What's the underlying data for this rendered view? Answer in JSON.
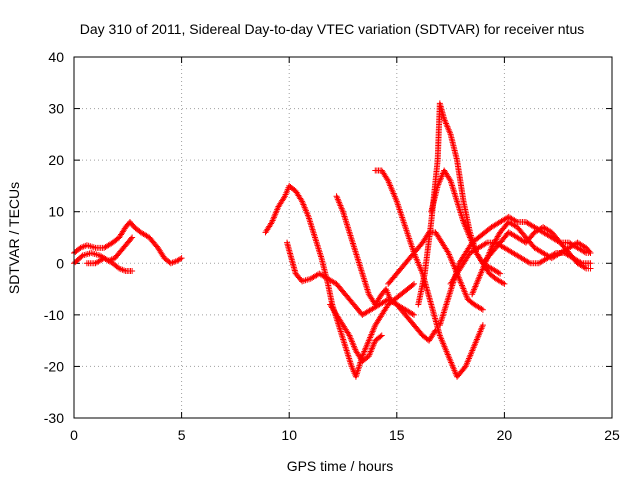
{
  "chart_data": {
    "type": "scatter",
    "title": "Day 310 of 2011, Sidereal Day-to-day VTEC variation (SDTVAR) for receiver ntus",
    "xlabel": "GPS time / hours",
    "ylabel": "SDTVAR / TECUs",
    "xlim": [
      0,
      25
    ],
    "ylim": [
      -30,
      40
    ],
    "xticks": [
      0,
      5,
      10,
      15,
      20,
      25
    ],
    "yticks": [
      -30,
      -20,
      -10,
      0,
      10,
      20,
      30,
      40
    ],
    "grid": true,
    "marker": "+",
    "color": "#ff0000",
    "series": [
      {
        "x": [
          0.0,
          0.3,
          0.6,
          1.0,
          1.4,
          1.8,
          2.1,
          2.4,
          2.6,
          2.8,
          3.1,
          3.5,
          3.9,
          4.2,
          4.5,
          4.8,
          5.0
        ],
        "y": [
          2,
          3,
          3.5,
          3,
          3,
          4,
          5,
          7,
          8,
          7,
          6,
          5,
          3,
          1,
          0,
          0.5,
          1
        ]
      },
      {
        "x": [
          0.0,
          0.4,
          0.8,
          1.2,
          1.6,
          1.9,
          2.2,
          2.5,
          2.7
        ],
        "y": [
          0,
          1.5,
          2,
          1.5,
          0.5,
          1,
          2.5,
          4,
          5
        ]
      },
      {
        "x": [
          0.6,
          1.0,
          1.4,
          1.8,
          2.1,
          2.4,
          2.7
        ],
        "y": [
          0,
          0,
          1,
          0,
          -1,
          -1.5,
          -1.5
        ]
      },
      {
        "x": [
          8.9,
          9.2,
          9.5,
          9.8,
          10.0,
          10.3,
          10.6,
          10.9,
          11.2,
          11.5,
          11.8,
          12.0,
          12.3,
          12.6,
          12.9,
          13.1,
          13.4,
          13.7,
          14.0,
          14.3,
          14.6,
          14.9,
          15.2,
          15.5,
          15.8
        ],
        "y": [
          6,
          8,
          11,
          13,
          15,
          14,
          12,
          9,
          5,
          1,
          -4,
          -8,
          -12,
          -16,
          -20,
          -22,
          -18,
          -15,
          -12,
          -10,
          -8,
          -7,
          -6,
          -5,
          -4
        ]
      },
      {
        "x": [
          9.9,
          10.1,
          10.3,
          10.6,
          11.0,
          11.4,
          11.8,
          12.2,
          12.6,
          13.0,
          13.4,
          13.8,
          14.2,
          14.6,
          15.0,
          15.4,
          15.8
        ],
        "y": [
          4,
          1,
          -2,
          -3.5,
          -3,
          -2,
          -3,
          -4,
          -6,
          -8,
          -10,
          -9,
          -8,
          -7,
          -8,
          -9,
          -10
        ]
      },
      {
        "x": [
          11.9,
          12.2,
          12.5,
          12.8,
          13.1,
          13.4,
          13.7,
          14.0,
          14.3
        ],
        "y": [
          -8,
          -10,
          -12,
          -14,
          -17,
          -19,
          -18,
          -15,
          -14
        ]
      },
      {
        "x": [
          12.2,
          12.5,
          12.8,
          13.1,
          13.4,
          13.7,
          14.0,
          14.3,
          14.5,
          14.7,
          15.0,
          15.4,
          15.8,
          16.2,
          16.5,
          16.8
        ],
        "y": [
          13,
          10,
          6,
          2,
          -2,
          -6,
          -8,
          -6,
          -5,
          -7,
          -8,
          -10,
          -12,
          -14,
          -15,
          -13
        ]
      },
      {
        "x": [
          14.0,
          14.3,
          14.6,
          15.0,
          15.4,
          15.8,
          16.2,
          16.6,
          17.0,
          17.4,
          17.8,
          18.2,
          18.6,
          19.0
        ],
        "y": [
          18,
          18,
          16,
          12,
          7,
          2,
          -2,
          -8,
          -14,
          -18,
          -22,
          -20,
          -16,
          -12
        ]
      },
      {
        "x": [
          14.6,
          15.0,
          15.4,
          15.8,
          16.2,
          16.5,
          16.8,
          17.1,
          17.4,
          17.7,
          18.0,
          18.3,
          18.6,
          19.0
        ],
        "y": [
          -4,
          -2,
          0,
          2,
          4,
          6,
          6,
          4,
          2,
          -1,
          -4,
          -7,
          -8,
          -9
        ]
      },
      {
        "x": [
          16.0,
          16.3,
          16.6,
          16.9,
          17.0,
          17.2,
          17.5,
          17.8,
          18.1,
          18.4,
          18.7,
          19.0,
          19.4,
          19.8
        ],
        "y": [
          -8,
          -2,
          8,
          20,
          31,
          28,
          25,
          20,
          12,
          6,
          2,
          0,
          -1,
          -2
        ]
      },
      {
        "x": [
          16.6,
          16.9,
          17.2,
          17.5,
          17.8,
          18.1,
          18.4,
          18.7,
          19.0,
          19.3,
          19.6,
          20.0
        ],
        "y": [
          10,
          15,
          18,
          16,
          12,
          8,
          5,
          2,
          0,
          -2,
          -3,
          -4
        ]
      },
      {
        "x": [
          17.0,
          17.3,
          17.6,
          17.9,
          18.2,
          18.5,
          18.8,
          19.1,
          19.4,
          19.8,
          20.2,
          20.6,
          21.0,
          21.4,
          21.8,
          22.2,
          22.6,
          23.0,
          23.4,
          23.8,
          24.0
        ],
        "y": [
          -12,
          -8,
          -4,
          0,
          2,
          4,
          5,
          6,
          7,
          8,
          9,
          8,
          8,
          7,
          6,
          5,
          4,
          4,
          3,
          2,
          2
        ]
      },
      {
        "x": [
          17.5,
          17.8,
          18.1,
          18.4,
          18.8,
          19.2,
          19.6,
          20.0,
          20.4,
          20.8,
          21.2,
          21.6,
          22.0,
          22.4,
          22.8,
          23.2,
          23.6,
          24.0
        ],
        "y": [
          -4,
          -2,
          0,
          2,
          3,
          4,
          4,
          3,
          2,
          1,
          0,
          0,
          1,
          2,
          2,
          1,
          0,
          0
        ]
      },
      {
        "x": [
          18.5,
          18.8,
          19.1,
          19.4,
          19.8,
          20.2,
          20.6,
          21.0,
          21.4,
          21.8,
          22.2,
          22.6,
          23.0,
          23.4,
          23.8,
          24.0
        ],
        "y": [
          -6,
          -3,
          0,
          3,
          6,
          8,
          7,
          5,
          3,
          2,
          1,
          2,
          3,
          4,
          3,
          2
        ]
      },
      {
        "x": [
          19.0,
          19.4,
          19.8,
          20.2,
          20.6,
          21.0,
          21.4,
          21.8,
          22.2,
          22.6,
          23.0,
          23.4,
          23.8,
          24.0
        ],
        "y": [
          0,
          2,
          4,
          6,
          5,
          4,
          6,
          7,
          6,
          4,
          2,
          0,
          -1,
          -1
        ]
      }
    ]
  }
}
